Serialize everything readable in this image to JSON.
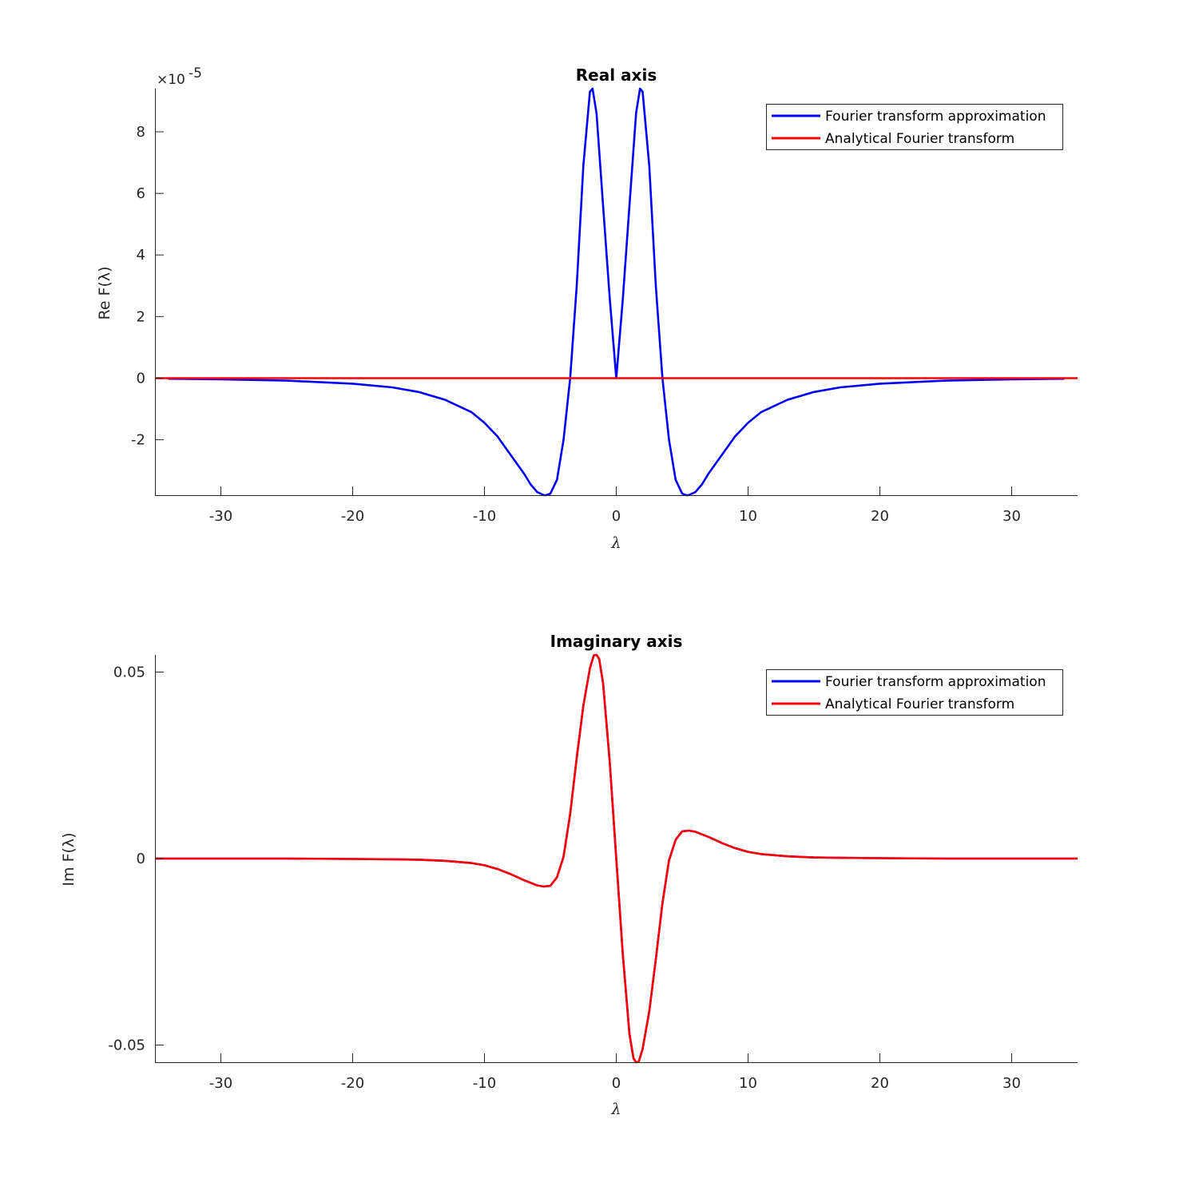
{
  "chart_data": [
    {
      "type": "line",
      "title": "Real axis",
      "xlabel": "λ",
      "ylabel": "Re F(λ)",
      "exponent_label": "×10",
      "exponent_power": "-5",
      "xlim": [
        -35,
        35
      ],
      "ylim": [
        -3.8,
        9.4
      ],
      "xticks": [
        -30,
        -20,
        -10,
        0,
        10,
        20,
        30
      ],
      "xtick_labels": [
        "-30",
        "-20",
        "-10",
        "0",
        "10",
        "20",
        "30"
      ],
      "yticks": [
        -2,
        0,
        2,
        4,
        6,
        8
      ],
      "ytick_labels": [
        "-2",
        "0",
        "2",
        "4",
        "6",
        "8"
      ],
      "grid": false,
      "legend_position": "top-right",
      "series": [
        {
          "name": "Fourier transform approximation",
          "color": "#0000ff",
          "x": [
            -34,
            -30,
            -25,
            -20,
            -17,
            -15,
            -13,
            -11,
            -10,
            -9,
            -8,
            -7,
            -6.5,
            -6,
            -5.5,
            -5.3,
            -5,
            -4.5,
            -4,
            -3.5,
            -3,
            -2.5,
            -2,
            -1.8,
            -1.5,
            -1,
            -0.5,
            0,
            0.5,
            1,
            1.5,
            1.8,
            2,
            2.5,
            3,
            3.5,
            4,
            4.5,
            5,
            5.3,
            5.5,
            6,
            6.5,
            7,
            8,
            9,
            10,
            11,
            13,
            15,
            17,
            20,
            25,
            30,
            34
          ],
          "y": [
            -0.02,
            -0.04,
            -0.08,
            -0.18,
            -0.3,
            -0.45,
            -0.7,
            -1.1,
            -1.45,
            -1.9,
            -2.5,
            -3.1,
            -3.45,
            -3.7,
            -3.8,
            -3.8,
            -3.75,
            -3.3,
            -2.0,
            0.0,
            3.0,
            6.9,
            9.3,
            9.4,
            8.6,
            5.6,
            2.6,
            0.0,
            2.6,
            5.6,
            8.6,
            9.4,
            9.3,
            6.9,
            3.0,
            0.0,
            -2.0,
            -3.3,
            -3.75,
            -3.8,
            -3.8,
            -3.7,
            -3.45,
            -3.1,
            -2.5,
            -1.9,
            -1.45,
            -1.1,
            -0.7,
            -0.45,
            -0.3,
            -0.18,
            -0.08,
            -0.04,
            -0.02
          ]
        },
        {
          "name": "Analytical Fourier transform",
          "color": "#ff0000",
          "x": [
            -35,
            35
          ],
          "y": [
            0,
            0
          ]
        }
      ]
    },
    {
      "type": "line",
      "title": "Imaginary axis",
      "xlabel": "λ",
      "ylabel": "Im F(λ)",
      "xlim": [
        -35,
        35
      ],
      "ylim": [
        -0.0546,
        0.0546
      ],
      "xticks": [
        -30,
        -20,
        -10,
        0,
        10,
        20,
        30
      ],
      "xtick_labels": [
        "-30",
        "-20",
        "-10",
        "0",
        "10",
        "20",
        "30"
      ],
      "yticks": [
        -0.05,
        0,
        0.05
      ],
      "ytick_labels": [
        "-0.05",
        "0",
        "0.05"
      ],
      "grid": false,
      "legend_position": "top-right",
      "series": [
        {
          "name": "Fourier transform approximation",
          "color": "#0000ff",
          "x": [
            -35,
            -30,
            -25,
            -20,
            -17,
            -15,
            -13,
            -11,
            -10,
            -9,
            -8,
            -7,
            -6,
            -5.5,
            -5,
            -4.5,
            -4,
            -3.5,
            -3,
            -2.5,
            -2,
            -1.7,
            -1.5,
            -1.3,
            -1,
            -0.5,
            0,
            0.5,
            1,
            1.3,
            1.5,
            1.7,
            2,
            2.5,
            3,
            3.5,
            4,
            4.5,
            5,
            5.5,
            6,
            7,
            8,
            9,
            10,
            11,
            13,
            15,
            17,
            20,
            25,
            30,
            35
          ],
          "y": [
            0,
            0,
            0,
            -0.0001,
            -0.0002,
            -0.0003,
            -0.0006,
            -0.0012,
            -0.0018,
            -0.0028,
            -0.0042,
            -0.0058,
            -0.0072,
            -0.0075,
            -0.0073,
            -0.005,
            0.0005,
            0.012,
            0.027,
            0.041,
            0.051,
            0.0545,
            0.0546,
            0.0535,
            0.047,
            0.026,
            0,
            -0.026,
            -0.047,
            -0.0535,
            -0.0546,
            -0.0545,
            -0.051,
            -0.041,
            -0.027,
            -0.012,
            -0.0005,
            0.005,
            0.0073,
            0.0075,
            0.0072,
            0.0058,
            0.0042,
            0.0028,
            0.0018,
            0.0012,
            0.0006,
            0.0003,
            0.0002,
            0.0001,
            0,
            0,
            0
          ]
        },
        {
          "name": "Analytical Fourier transform",
          "color": "#ff0000",
          "x": [
            -35,
            -30,
            -25,
            -20,
            -17,
            -15,
            -13,
            -11,
            -10,
            -9,
            -8,
            -7,
            -6,
            -5.5,
            -5,
            -4.5,
            -4,
            -3.5,
            -3,
            -2.5,
            -2,
            -1.7,
            -1.5,
            -1.3,
            -1,
            -0.5,
            0,
            0.5,
            1,
            1.3,
            1.5,
            1.7,
            2,
            2.5,
            3,
            3.5,
            4,
            4.5,
            5,
            5.5,
            6,
            7,
            8,
            9,
            10,
            11,
            13,
            15,
            17,
            20,
            25,
            30,
            35
          ],
          "y": [
            0,
            0,
            0,
            -0.0001,
            -0.0002,
            -0.0003,
            -0.0006,
            -0.0012,
            -0.0018,
            -0.0028,
            -0.0042,
            -0.0058,
            -0.0072,
            -0.0075,
            -0.0073,
            -0.005,
            0.0005,
            0.012,
            0.027,
            0.041,
            0.051,
            0.0545,
            0.0546,
            0.0535,
            0.047,
            0.026,
            0,
            -0.026,
            -0.047,
            -0.0535,
            -0.0546,
            -0.0545,
            -0.051,
            -0.041,
            -0.027,
            -0.012,
            -0.0005,
            0.005,
            0.0073,
            0.0075,
            0.0072,
            0.0058,
            0.0042,
            0.0028,
            0.0018,
            0.0012,
            0.0006,
            0.0003,
            0.0002,
            0.0001,
            0,
            0,
            0
          ]
        }
      ]
    }
  ]
}
